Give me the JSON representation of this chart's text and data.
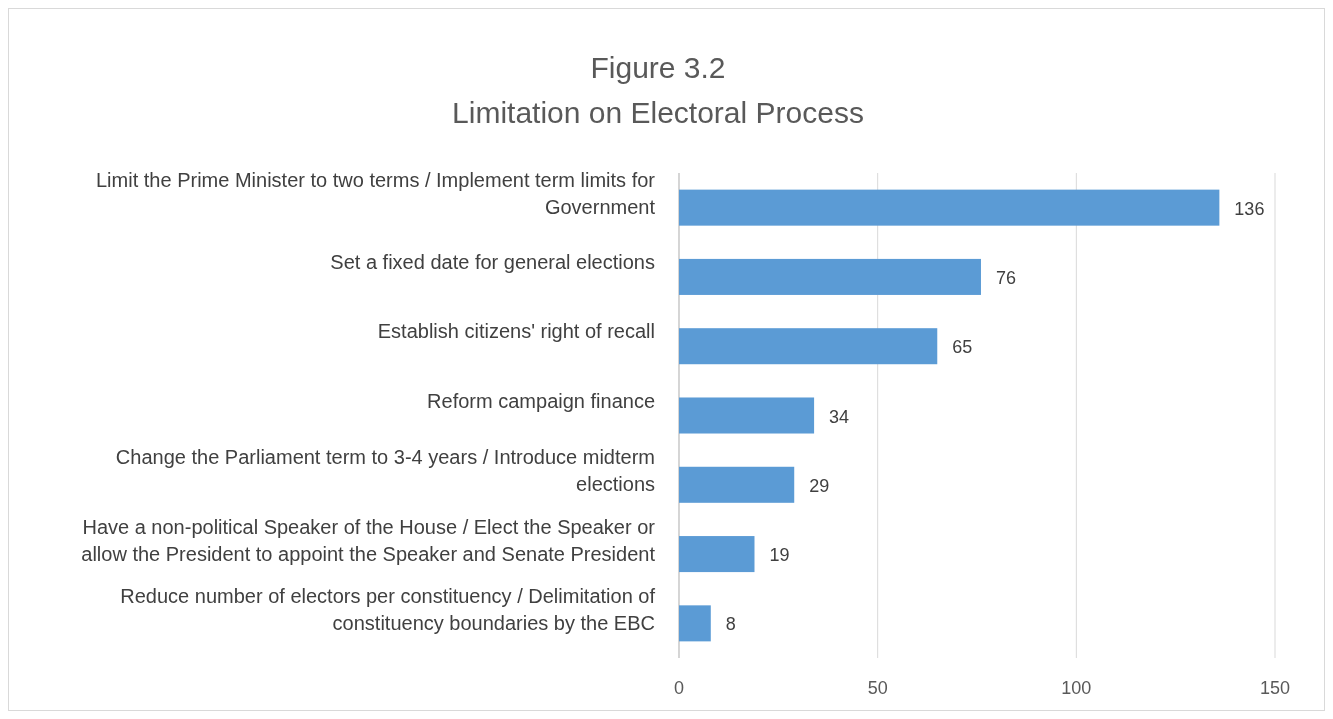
{
  "chart_data": {
    "type": "bar",
    "orientation": "horizontal",
    "title": "Figure 3.2",
    "subtitle": "Limitation on Electoral Process",
    "categories": [
      "Limit the Prime Minister to two terms / Implement term limits for Government",
      "Set a fixed date for general elections",
      "Establish citizens' right of recall",
      "Reform campaign finance",
      "Change the Parliament term to 3-4 years / Introduce midterm elections",
      "Have a non-political Speaker of the House / Elect the Speaker or allow the President to appoint the Speaker and Senate President",
      "Reduce number of electors per constituency / Delimitation of constituency boundaries by the EBC"
    ],
    "values": [
      136,
      76,
      65,
      34,
      29,
      19,
      8
    ],
    "color": "#5b9bd5",
    "xlim": [
      0,
      150
    ],
    "xticks": [
      0,
      50,
      100,
      150
    ],
    "grid": "x",
    "data_labels": true
  }
}
